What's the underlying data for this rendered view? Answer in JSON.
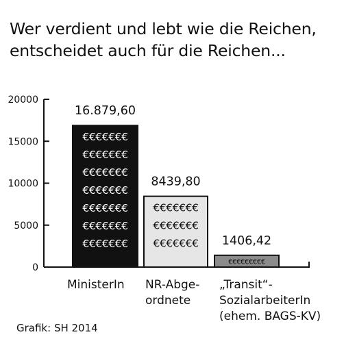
{
  "title_lines": [
    "Wer verdient und lebt wie die Reichen,",
    "entscheidet auch für die Reichen..."
  ],
  "source": "Grafik: SH 2014",
  "chart_data": {
    "type": "bar",
    "categories": [
      [
        "MinisterIn"
      ],
      [
        "NR-Abge-",
        "ordnete"
      ],
      [
        "„Transit“-",
        "SozialarbeiterIn",
        "(ehem. BAGS-KV)"
      ]
    ],
    "values": [
      16879.6,
      8439.8,
      1406.42
    ],
    "value_labels": [
      "16.879,60",
      "8439,80",
      "1406,42"
    ],
    "yticks": [
      0,
      5000,
      10000,
      15000,
      20000
    ],
    "ylim": [
      0,
      20000
    ],
    "bar_fill_colors": [
      "#111111",
      "#e6e6e6",
      "#8c8c8c"
    ],
    "bar_pattern": "€€€€€€€",
    "pattern_colors": [
      "#ffffff",
      "#111111",
      "#111111"
    ],
    "grid": false,
    "legend": "none"
  }
}
